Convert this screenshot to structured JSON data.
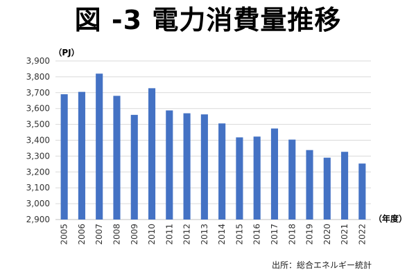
{
  "title": "図 -3 電力消費量推移",
  "source": "出所：総合エネルギー統計",
  "chart_data": {
    "type": "bar",
    "title": "図 -3 電力消費量推移",
    "ylabel": "（PJ）",
    "xlabel": "（年度）",
    "ylim": [
      2900,
      3900
    ],
    "yticks": [
      "2,900",
      "3,000",
      "3,100",
      "3,200",
      "3,300",
      "3,400",
      "3,500",
      "3,600",
      "3,700",
      "3,800",
      "3,900"
    ],
    "categories": [
      "2005",
      "2006",
      "2007",
      "2008",
      "2009",
      "2010",
      "2011",
      "2012",
      "2013",
      "2014",
      "2015",
      "2016",
      "2017",
      "2018",
      "2019",
      "2020",
      "2021",
      "2022"
    ],
    "values": [
      3690,
      3705,
      3820,
      3680,
      3560,
      3728,
      3588,
      3570,
      3563,
      3506,
      3418,
      3423,
      3474,
      3404,
      3338,
      3290,
      3327,
      3253
    ],
    "grid": true,
    "legend": "none",
    "bar_color": "#4472C4"
  }
}
